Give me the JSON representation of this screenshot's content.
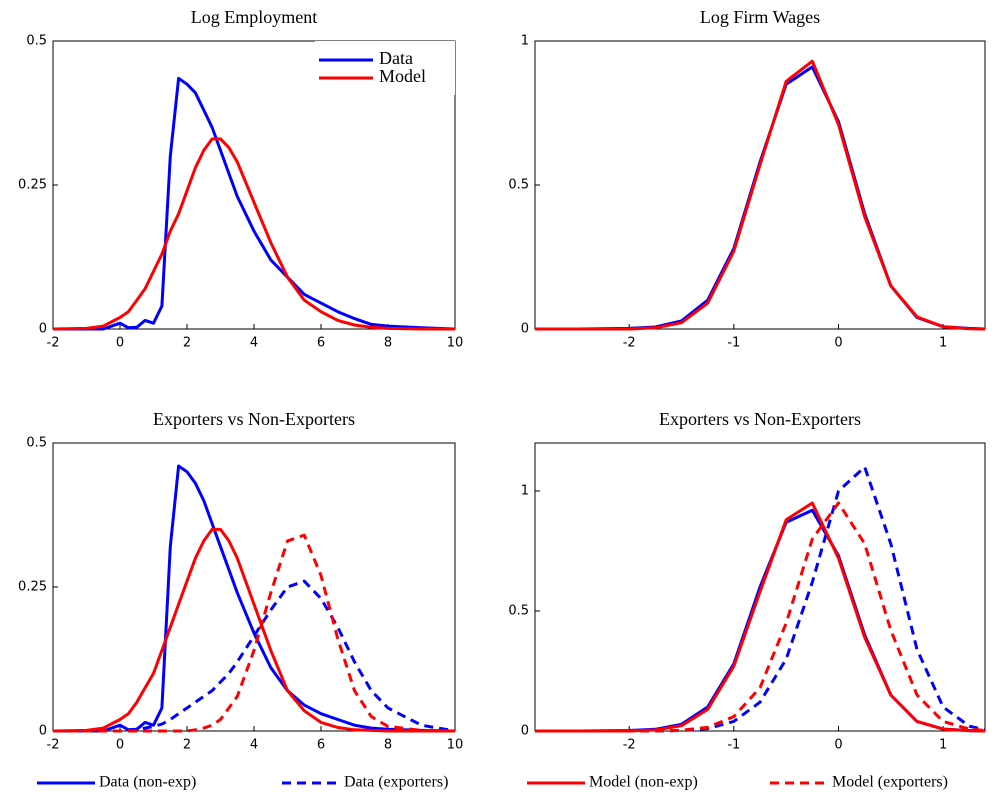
{
  "chart_data": [
    {
      "type": "line",
      "title": "Log Employment",
      "legend": "upper right",
      "x": [
        -2,
        -1,
        -0.5,
        0,
        0.25,
        0.5,
        0.75,
        1,
        1.25,
        1.5,
        1.75,
        2,
        2.25,
        2.5,
        2.75,
        3,
        3.25,
        3.5,
        4,
        4.5,
        5,
        5.5,
        6,
        6.5,
        7,
        7.5,
        8,
        9,
        10
      ],
      "xlim": [
        -2,
        10
      ],
      "xticks": [
        -2,
        0,
        2,
        4,
        6,
        8,
        10
      ],
      "ylim": [
        0,
        0.5
      ],
      "yticks": [
        0,
        0.25,
        0.5
      ],
      "series": [
        {
          "name": "Data",
          "color": "#0000ff",
          "linestyle": "solid",
          "values": [
            0,
            0,
            0,
            0.01,
            0.002,
            0.003,
            0.015,
            0.01,
            0.04,
            0.3,
            0.435,
            0.425,
            0.41,
            0.38,
            0.35,
            0.31,
            0.27,
            0.23,
            0.17,
            0.12,
            0.09,
            0.06,
            0.045,
            0.03,
            0.018,
            0.008,
            0.005,
            0.002,
            0
          ]
        },
        {
          "name": "Model",
          "color": "#ff0000",
          "linestyle": "solid",
          "values": [
            0,
            0.001,
            0.005,
            0.02,
            0.03,
            0.05,
            0.07,
            0.1,
            0.13,
            0.17,
            0.2,
            0.24,
            0.28,
            0.31,
            0.33,
            0.33,
            0.315,
            0.29,
            0.22,
            0.15,
            0.09,
            0.05,
            0.03,
            0.015,
            0.007,
            0.003,
            0.001,
            0,
            0
          ]
        }
      ]
    },
    {
      "type": "line",
      "title": "Log Firm Wages",
      "x": [
        -2.9,
        -2.5,
        -2,
        -1.75,
        -1.5,
        -1.25,
        -1,
        -0.75,
        -0.5,
        -0.25,
        0,
        0.25,
        0.5,
        0.75,
        1,
        1.25,
        1.4
      ],
      "xlim": [
        -2.9,
        1.4
      ],
      "xticks": [
        -2,
        -1,
        0,
        1
      ],
      "ylim": [
        0,
        1
      ],
      "yticks": [
        0,
        0.5,
        1
      ],
      "series": [
        {
          "color": "#0000ff",
          "linestyle": "solid",
          "values": [
            0,
            0,
            0.002,
            0.007,
            0.028,
            0.1,
            0.28,
            0.58,
            0.85,
            0.91,
            0.72,
            0.4,
            0.15,
            0.04,
            0.008,
            0.002,
            0
          ]
        },
        {
          "color": "#ff0000",
          "linestyle": "solid",
          "values": [
            0,
            0,
            0,
            0.004,
            0.022,
            0.09,
            0.27,
            0.57,
            0.86,
            0.93,
            0.71,
            0.39,
            0.15,
            0.042,
            0.008,
            0.001,
            0
          ]
        }
      ]
    },
    {
      "type": "line",
      "title": "Exporters vs Non-Exporters",
      "legend": "bottom",
      "x": [
        -2,
        -1,
        -0.5,
        0,
        0.25,
        0.5,
        0.75,
        1,
        1.25,
        1.5,
        1.75,
        2,
        2.25,
        2.5,
        2.75,
        3,
        3.25,
        3.5,
        4,
        4.5,
        5,
        5.5,
        6,
        6.5,
        7,
        7.5,
        8,
        9,
        10
      ],
      "xlim": [
        -2,
        10
      ],
      "xticks": [
        -2,
        0,
        2,
        4,
        6,
        8,
        10
      ],
      "ylim": [
        0,
        0.5
      ],
      "yticks": [
        0,
        0.25,
        0.5
      ],
      "series": [
        {
          "name": "Data (non-exp)",
          "color": "#0000ff",
          "linestyle": "solid",
          "values": [
            0,
            0,
            0,
            0.01,
            0.002,
            0.003,
            0.015,
            0.01,
            0.04,
            0.32,
            0.46,
            0.45,
            0.43,
            0.4,
            0.36,
            0.32,
            0.28,
            0.24,
            0.17,
            0.11,
            0.07,
            0.045,
            0.03,
            0.02,
            0.01,
            0.005,
            0.003,
            0.001,
            0
          ]
        },
        {
          "name": "Data (exporters)",
          "color": "#0000ff",
          "linestyle": "dashed",
          "values": [
            0,
            0,
            0,
            0,
            0,
            0.002,
            0.005,
            0.008,
            0.012,
            0.02,
            0.03,
            0.04,
            0.05,
            0.06,
            0.07,
            0.085,
            0.1,
            0.12,
            0.165,
            0.21,
            0.25,
            0.26,
            0.23,
            0.18,
            0.12,
            0.07,
            0.04,
            0.01,
            0
          ]
        },
        {
          "name": "Model (non-exp)",
          "color": "#ff0000",
          "linestyle": "solid",
          "values": [
            0,
            0.001,
            0.005,
            0.02,
            0.03,
            0.05,
            0.075,
            0.1,
            0.14,
            0.18,
            0.22,
            0.26,
            0.3,
            0.33,
            0.35,
            0.35,
            0.33,
            0.3,
            0.22,
            0.14,
            0.07,
            0.035,
            0.015,
            0.006,
            0.002,
            0.001,
            0,
            0,
            0
          ]
        },
        {
          "name": "Model (exporters)",
          "color": "#ff0000",
          "linestyle": "dashed",
          "values": [
            0,
            0,
            0,
            0,
            0,
            0,
            0,
            0,
            0,
            0,
            0,
            0,
            0.002,
            0.005,
            0.01,
            0.02,
            0.04,
            0.06,
            0.14,
            0.24,
            0.33,
            0.34,
            0.27,
            0.16,
            0.07,
            0.025,
            0.008,
            0.001,
            0
          ]
        }
      ]
    },
    {
      "type": "line",
      "title": "Exporters vs Non-Exporters",
      "x": [
        -2.9,
        -2.5,
        -2,
        -1.75,
        -1.5,
        -1.25,
        -1,
        -0.75,
        -0.5,
        -0.25,
        0,
        0.25,
        0.5,
        0.75,
        1,
        1.25,
        1.4
      ],
      "xlim": [
        -2.9,
        1.4
      ],
      "xticks": [
        -2,
        -1,
        0,
        1
      ],
      "ylim": [
        0,
        1.2
      ],
      "yticks": [
        0,
        0.5,
        1
      ],
      "series": [
        {
          "color": "#0000ff",
          "linestyle": "solid",
          "values": [
            0,
            0,
            0.002,
            0.007,
            0.028,
            0.1,
            0.28,
            0.6,
            0.87,
            0.92,
            0.73,
            0.4,
            0.15,
            0.04,
            0.008,
            0.002,
            0
          ]
        },
        {
          "color": "#0000ff",
          "linestyle": "dashed",
          "values": [
            0,
            0,
            0,
            0,
            0.002,
            0.01,
            0.04,
            0.12,
            0.3,
            0.62,
            1.0,
            1.1,
            0.78,
            0.34,
            0.1,
            0.02,
            0.005
          ]
        },
        {
          "color": "#ff0000",
          "linestyle": "solid",
          "values": [
            0,
            0,
            0,
            0.004,
            0.022,
            0.09,
            0.27,
            0.58,
            0.88,
            0.95,
            0.72,
            0.39,
            0.15,
            0.04,
            0.008,
            0.001,
            0
          ]
        },
        {
          "color": "#ff0000",
          "linestyle": "dashed",
          "values": [
            0,
            0,
            0,
            0,
            0.003,
            0.015,
            0.06,
            0.18,
            0.45,
            0.8,
            0.95,
            0.78,
            0.42,
            0.15,
            0.04,
            0.008,
            0.002
          ]
        }
      ]
    }
  ]
}
